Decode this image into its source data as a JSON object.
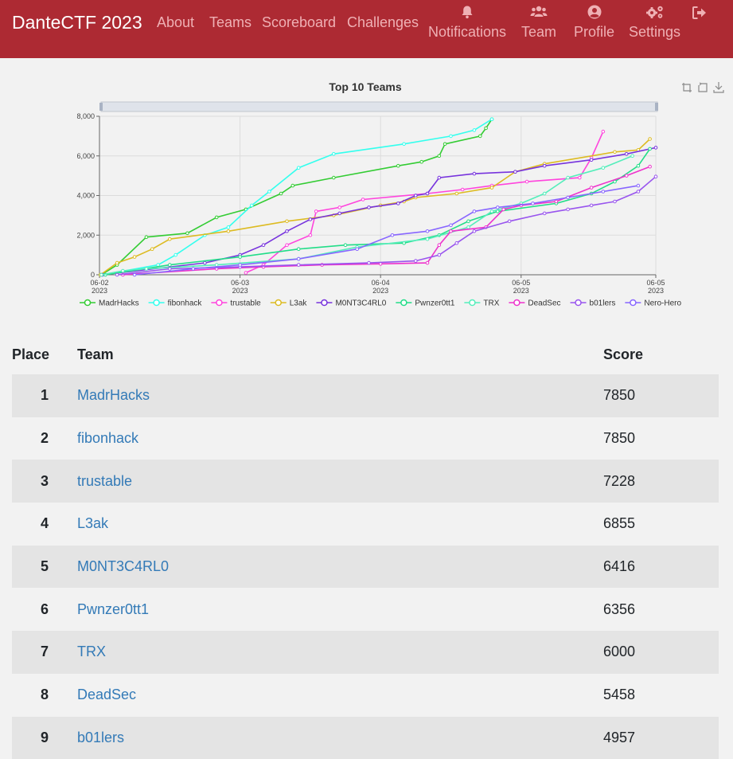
{
  "navbar": {
    "brand": "DanteCTF 2023",
    "links": [
      "About",
      "Teams",
      "Scoreboard",
      "Challenges"
    ],
    "icon_items": [
      {
        "label": "Notifications",
        "icon": "bell-icon"
      },
      {
        "label": "Team",
        "icon": "users-icon"
      },
      {
        "label": "Profile",
        "icon": "user-circle-icon"
      },
      {
        "label": "Settings",
        "icon": "cogs-icon"
      }
    ],
    "logout_icon": "sign-out-icon",
    "background": "#ad2a33",
    "link_color": "#efb0b4"
  },
  "chart_data": {
    "type": "line",
    "title": "Top 10 Teams",
    "xlabel": "",
    "ylabel": "",
    "xlim": [
      "2023-06-02 00:00",
      "2023-06-05 23:00"
    ],
    "ylim": [
      0,
      8000
    ],
    "y_ticks": [
      "0",
      "2,000",
      "4,000",
      "6,000",
      "8,000"
    ],
    "x_ticks": [
      {
        "t": "2023-06-02 00:00",
        "day": "06-02",
        "year": "2023"
      },
      {
        "t": "2023-06-03 00:00",
        "day": "06-03",
        "year": "2023"
      },
      {
        "t": "2023-06-04 00:00",
        "day": "06-04",
        "year": "2023"
      },
      {
        "t": "2023-06-05 00:00",
        "day": "06-05",
        "year": "2023"
      },
      {
        "t": "2023-06-05 23:00",
        "day": "06-05",
        "year": "2023"
      }
    ],
    "grid": true,
    "legend_position": "bottom",
    "series": [
      {
        "name": "MadrHacks",
        "color": "#33cc33",
        "points": [
          [
            "2023-06-02 00:20",
            0
          ],
          [
            "2023-06-02 03:00",
            500
          ],
          [
            "2023-06-02 08:00",
            1900
          ],
          [
            "2023-06-02 15:00",
            2100
          ],
          [
            "2023-06-02 20:00",
            2900
          ],
          [
            "2023-06-03 01:00",
            3300
          ],
          [
            "2023-06-03 07:00",
            4100
          ],
          [
            "2023-06-03 09:00",
            4500
          ],
          [
            "2023-06-03 16:00",
            4900
          ],
          [
            "2023-06-04 03:00",
            5500
          ],
          [
            "2023-06-04 07:00",
            5700
          ],
          [
            "2023-06-04 10:00",
            6000
          ],
          [
            "2023-06-04 11:00",
            6600
          ],
          [
            "2023-06-04 17:00",
            7000
          ],
          [
            "2023-06-04 18:00",
            7400
          ],
          [
            "2023-06-04 19:00",
            7850
          ]
        ]
      },
      {
        "name": "fibonhack",
        "color": "#33ffee",
        "points": [
          [
            "2023-06-02 00:30",
            0
          ],
          [
            "2023-06-02 10:00",
            500
          ],
          [
            "2023-06-02 13:00",
            1000
          ],
          [
            "2023-06-02 18:00",
            2000
          ],
          [
            "2023-06-02 22:00",
            2400
          ],
          [
            "2023-06-03 02:00",
            3500
          ],
          [
            "2023-06-03 05:00",
            4200
          ],
          [
            "2023-06-03 10:00",
            5400
          ],
          [
            "2023-06-03 16:00",
            6100
          ],
          [
            "2023-06-04 04:00",
            6600
          ],
          [
            "2023-06-04 12:00",
            7000
          ],
          [
            "2023-06-04 16:00",
            7300
          ],
          [
            "2023-06-04 19:00",
            7850
          ]
        ]
      },
      {
        "name": "trustable",
        "color": "#ff44dd",
        "points": [
          [
            "2023-06-03 01:00",
            100
          ],
          [
            "2023-06-03 04:00",
            500
          ],
          [
            "2023-06-03 08:00",
            1500
          ],
          [
            "2023-06-03 12:00",
            2000
          ],
          [
            "2023-06-03 13:00",
            3200
          ],
          [
            "2023-06-03 17:00",
            3400
          ],
          [
            "2023-06-03 21:00",
            3800
          ],
          [
            "2023-06-04 08:00",
            4100
          ],
          [
            "2023-06-04 14:00",
            4300
          ],
          [
            "2023-06-04 19:00",
            4500
          ],
          [
            "2023-06-05 01:00",
            4700
          ],
          [
            "2023-06-05 10:00",
            4900
          ],
          [
            "2023-06-05 12:00",
            5900
          ],
          [
            "2023-06-05 14:00",
            7228
          ]
        ]
      },
      {
        "name": "L3ak",
        "color": "#ddbb22",
        "points": [
          [
            "2023-06-02 00:10",
            0
          ],
          [
            "2023-06-02 03:00",
            600
          ],
          [
            "2023-06-02 06:00",
            900
          ],
          [
            "2023-06-02 09:00",
            1300
          ],
          [
            "2023-06-02 12:00",
            1800
          ],
          [
            "2023-06-02 22:00",
            2200
          ],
          [
            "2023-06-03 08:00",
            2700
          ],
          [
            "2023-06-03 16:00",
            3000
          ],
          [
            "2023-06-04 00:00",
            3500
          ],
          [
            "2023-06-04 04:00",
            3700
          ],
          [
            "2023-06-04 06:00",
            3900
          ],
          [
            "2023-06-04 13:00",
            4100
          ],
          [
            "2023-06-04 19:00",
            4400
          ],
          [
            "2023-06-04 23:00",
            5200
          ],
          [
            "2023-06-05 04:00",
            5600
          ],
          [
            "2023-06-05 16:00",
            6200
          ],
          [
            "2023-06-05 20:00",
            6300
          ],
          [
            "2023-06-05 22:00",
            6855
          ]
        ]
      },
      {
        "name": "M0NT3C4RL0",
        "color": "#7733dd",
        "points": [
          [
            "2023-06-02 00:30",
            0
          ],
          [
            "2023-06-02 18:00",
            600
          ],
          [
            "2023-06-03 00:00",
            1000
          ],
          [
            "2023-06-03 04:00",
            1500
          ],
          [
            "2023-06-03 08:00",
            2200
          ],
          [
            "2023-06-03 12:00",
            2800
          ],
          [
            "2023-06-03 17:00",
            3100
          ],
          [
            "2023-06-03 22:00",
            3400
          ],
          [
            "2023-06-04 03:00",
            3600
          ],
          [
            "2023-06-04 06:00",
            4000
          ],
          [
            "2023-06-04 08:00",
            4100
          ],
          [
            "2023-06-04 10:00",
            4900
          ],
          [
            "2023-06-04 16:00",
            5100
          ],
          [
            "2023-06-04 23:00",
            5200
          ],
          [
            "2023-06-05 04:00",
            5500
          ],
          [
            "2023-06-05 12:00",
            5800
          ],
          [
            "2023-06-05 18:00",
            6100
          ],
          [
            "2023-06-05 23:00",
            6416
          ]
        ]
      },
      {
        "name": "Pwnzer0tt1",
        "color": "#22dd88",
        "points": [
          [
            "2023-06-02 01:00",
            0
          ],
          [
            "2023-06-02 12:00",
            500
          ],
          [
            "2023-06-03 00:00",
            900
          ],
          [
            "2023-06-03 10:00",
            1300
          ],
          [
            "2023-06-03 18:00",
            1500
          ],
          [
            "2023-06-04 04:00",
            1600
          ],
          [
            "2023-06-04 10:00",
            2000
          ],
          [
            "2023-06-04 15:00",
            2700
          ],
          [
            "2023-06-04 20:00",
            3200
          ],
          [
            "2023-06-05 06:00",
            3600
          ],
          [
            "2023-06-05 12:00",
            4100
          ],
          [
            "2023-06-05 16:00",
            4700
          ],
          [
            "2023-06-05 20:00",
            5500
          ],
          [
            "2023-06-05 22:00",
            6356
          ]
        ]
      },
      {
        "name": "TRX",
        "color": "#55eebb",
        "points": [
          [
            "2023-06-02 00:20",
            0
          ],
          [
            "2023-06-02 04:00",
            200
          ],
          [
            "2023-06-02 08:00",
            300
          ],
          [
            "2023-06-02 20:00",
            500
          ],
          [
            "2023-06-03 10:00",
            800
          ],
          [
            "2023-06-03 20:00",
            1400
          ],
          [
            "2023-06-04 08:00",
            1800
          ],
          [
            "2023-06-04 15:00",
            2400
          ],
          [
            "2023-06-04 19:00",
            3200
          ],
          [
            "2023-06-05 00:00",
            3600
          ],
          [
            "2023-06-05 04:00",
            4100
          ],
          [
            "2023-06-05 08:00",
            4900
          ],
          [
            "2023-06-05 14:00",
            5400
          ],
          [
            "2023-06-05 19:00",
            6000
          ]
        ]
      },
      {
        "name": "DeadSec",
        "color": "#ee33cc",
        "points": [
          [
            "2023-06-02 04:00",
            0
          ],
          [
            "2023-06-02 20:00",
            300
          ],
          [
            "2023-06-03 04:00",
            400
          ],
          [
            "2023-06-03 14:00",
            500
          ],
          [
            "2023-06-04 00:00",
            550
          ],
          [
            "2023-06-04 08:00",
            600
          ],
          [
            "2023-06-04 10:00",
            1500
          ],
          [
            "2023-06-04 12:00",
            2200
          ],
          [
            "2023-06-04 18:00",
            2400
          ],
          [
            "2023-06-04 21:00",
            3300
          ],
          [
            "2023-06-05 00:00",
            3500
          ],
          [
            "2023-06-05 06:00",
            3700
          ],
          [
            "2023-06-05 12:00",
            4400
          ],
          [
            "2023-06-05 18:00",
            5000
          ],
          [
            "2023-06-05 22:00",
            5458
          ]
        ]
      },
      {
        "name": "b01lers",
        "color": "#9955ee",
        "points": [
          [
            "2023-06-02 03:00",
            0
          ],
          [
            "2023-06-02 12:00",
            300
          ],
          [
            "2023-06-03 00:00",
            400
          ],
          [
            "2023-06-03 10:00",
            500
          ],
          [
            "2023-06-03 22:00",
            600
          ],
          [
            "2023-06-04 06:00",
            700
          ],
          [
            "2023-06-04 10:00",
            1000
          ],
          [
            "2023-06-04 13:00",
            1600
          ],
          [
            "2023-06-04 16:00",
            2200
          ],
          [
            "2023-06-04 22:00",
            2700
          ],
          [
            "2023-06-05 04:00",
            3100
          ],
          [
            "2023-06-05 08:00",
            3300
          ],
          [
            "2023-06-05 12:00",
            3500
          ],
          [
            "2023-06-05 16:00",
            3700
          ],
          [
            "2023-06-05 20:00",
            4200
          ],
          [
            "2023-06-05 23:00",
            4957
          ]
        ]
      },
      {
        "name": "Nero-Hero",
        "color": "#8866ff",
        "points": [
          [
            "2023-06-02 06:00",
            0
          ],
          [
            "2023-06-02 16:00",
            300
          ],
          [
            "2023-06-03 00:00",
            500
          ],
          [
            "2023-06-03 10:00",
            800
          ],
          [
            "2023-06-03 20:00",
            1300
          ],
          [
            "2023-06-04 02:00",
            2000
          ],
          [
            "2023-06-04 08:00",
            2200
          ],
          [
            "2023-06-04 12:00",
            2500
          ],
          [
            "2023-06-04 16:00",
            3200
          ],
          [
            "2023-06-04 20:00",
            3400
          ],
          [
            "2023-06-05 02:00",
            3600
          ],
          [
            "2023-06-05 08:00",
            3900
          ],
          [
            "2023-06-05 14:00",
            4200
          ],
          [
            "2023-06-05 20:00",
            4500
          ]
        ]
      }
    ]
  },
  "table": {
    "headers": {
      "place": "Place",
      "team": "Team",
      "score": "Score"
    },
    "rows": [
      {
        "place": "1",
        "team": "MadrHacks",
        "score": "7850"
      },
      {
        "place": "2",
        "team": "fibonhack",
        "score": "7850"
      },
      {
        "place": "3",
        "team": "trustable",
        "score": "7228"
      },
      {
        "place": "4",
        "team": "L3ak",
        "score": "6855"
      },
      {
        "place": "5",
        "team": "M0NT3C4RL0",
        "score": "6416"
      },
      {
        "place": "6",
        "team": "Pwnzer0tt1",
        "score": "6356"
      },
      {
        "place": "7",
        "team": "TRX",
        "score": "6000"
      },
      {
        "place": "8",
        "team": "DeadSec",
        "score": "5458"
      },
      {
        "place": "9",
        "team": "b01lers",
        "score": "4957"
      }
    ]
  }
}
